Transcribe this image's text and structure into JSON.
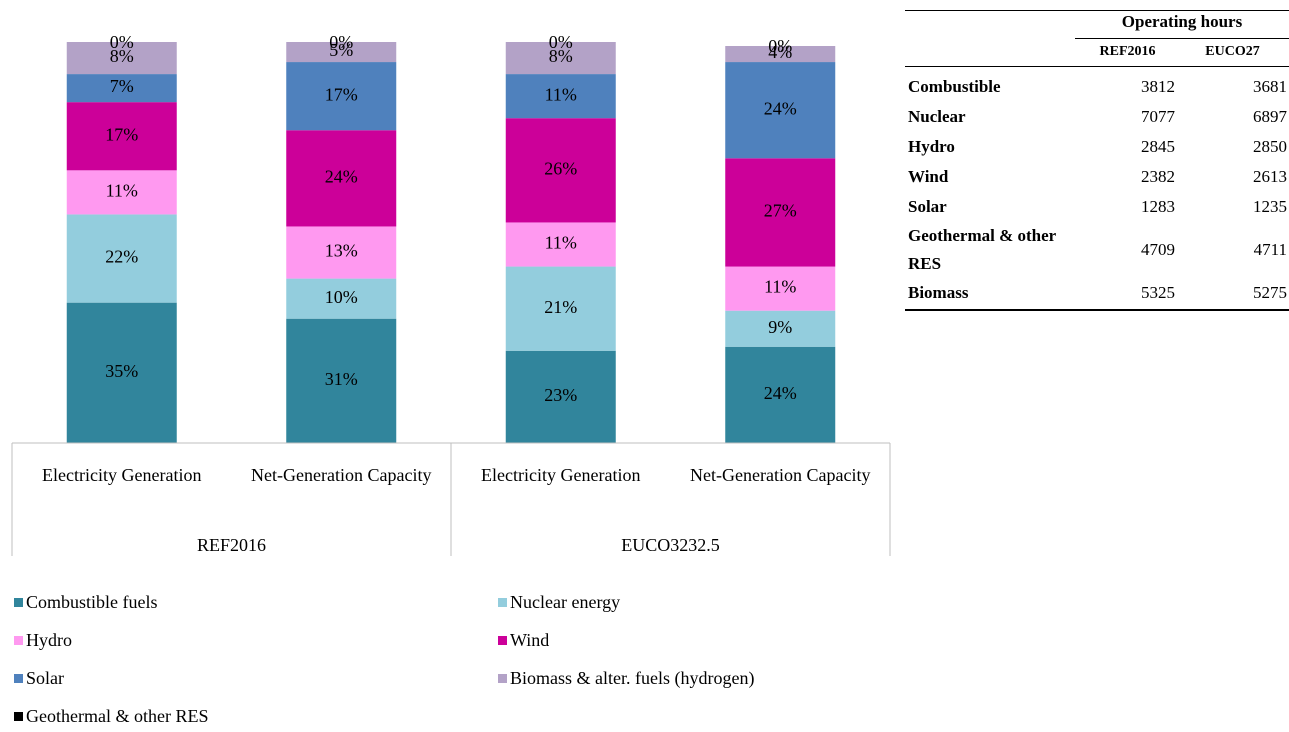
{
  "chart_data": {
    "type": "stacked_bar",
    "groups": [
      {
        "name": "REF2016",
        "categories": [
          "Electricity Generation",
          "Net-Generation Capacity"
        ]
      },
      {
        "name": "EUCO3232.5",
        "categories": [
          "Electricity Generation",
          "Net-Generation Capacity"
        ]
      }
    ],
    "ylim": [
      0,
      100
    ],
    "series": [
      {
        "name": "Combustible fuels",
        "color": "#31859c",
        "values": [
          35,
          31,
          23,
          24
        ],
        "value_labels": [
          "35%",
          "31%",
          "23%",
          "24%"
        ]
      },
      {
        "name": "Nuclear energy",
        "color": "#93cddd",
        "values": [
          22,
          10,
          21,
          9
        ],
        "value_labels": [
          "22%",
          "10%",
          "21%",
          "9%"
        ]
      },
      {
        "name": "Hydro",
        "color": "#ff99f0",
        "values": [
          11,
          13,
          11,
          11
        ],
        "value_labels": [
          "11%",
          "13%",
          "11%",
          "11%"
        ]
      },
      {
        "name": "Wind",
        "color": "#cc0099",
        "values": [
          17,
          24,
          26,
          27
        ],
        "value_labels": [
          "17%",
          "24%",
          "26%",
          "27%"
        ]
      },
      {
        "name": "Solar",
        "color": "#4f81bd",
        "values": [
          7,
          17,
          11,
          24
        ],
        "value_labels": [
          "7%",
          "17%",
          "11%",
          "24%"
        ]
      },
      {
        "name": "Biomass & alter. fuels (hydrogen)",
        "color": "#b3a2c7",
        "values": [
          8,
          5,
          8,
          4
        ],
        "value_labels": [
          "8%",
          "5%",
          "8%",
          "4%"
        ]
      },
      {
        "name": "Geothermal & other RES",
        "color": "#000000",
        "values": [
          0,
          0,
          0,
          0
        ],
        "value_labels": [
          "0%",
          "0%",
          "0%",
          "0%"
        ]
      }
    ]
  },
  "table": {
    "title": "Operating hours",
    "columns": [
      "REF2016",
      "EUCO27"
    ],
    "rows": [
      [
        "Combustible",
        3812,
        3681
      ],
      [
        "Nuclear",
        7077,
        6897
      ],
      [
        "Hydro",
        2845,
        2850
      ],
      [
        "Wind",
        2382,
        2613
      ],
      [
        "Solar",
        1283,
        1235
      ],
      [
        "Geothermal & other RES",
        4709,
        4711
      ],
      [
        "Biomass",
        5325,
        5275
      ]
    ]
  }
}
